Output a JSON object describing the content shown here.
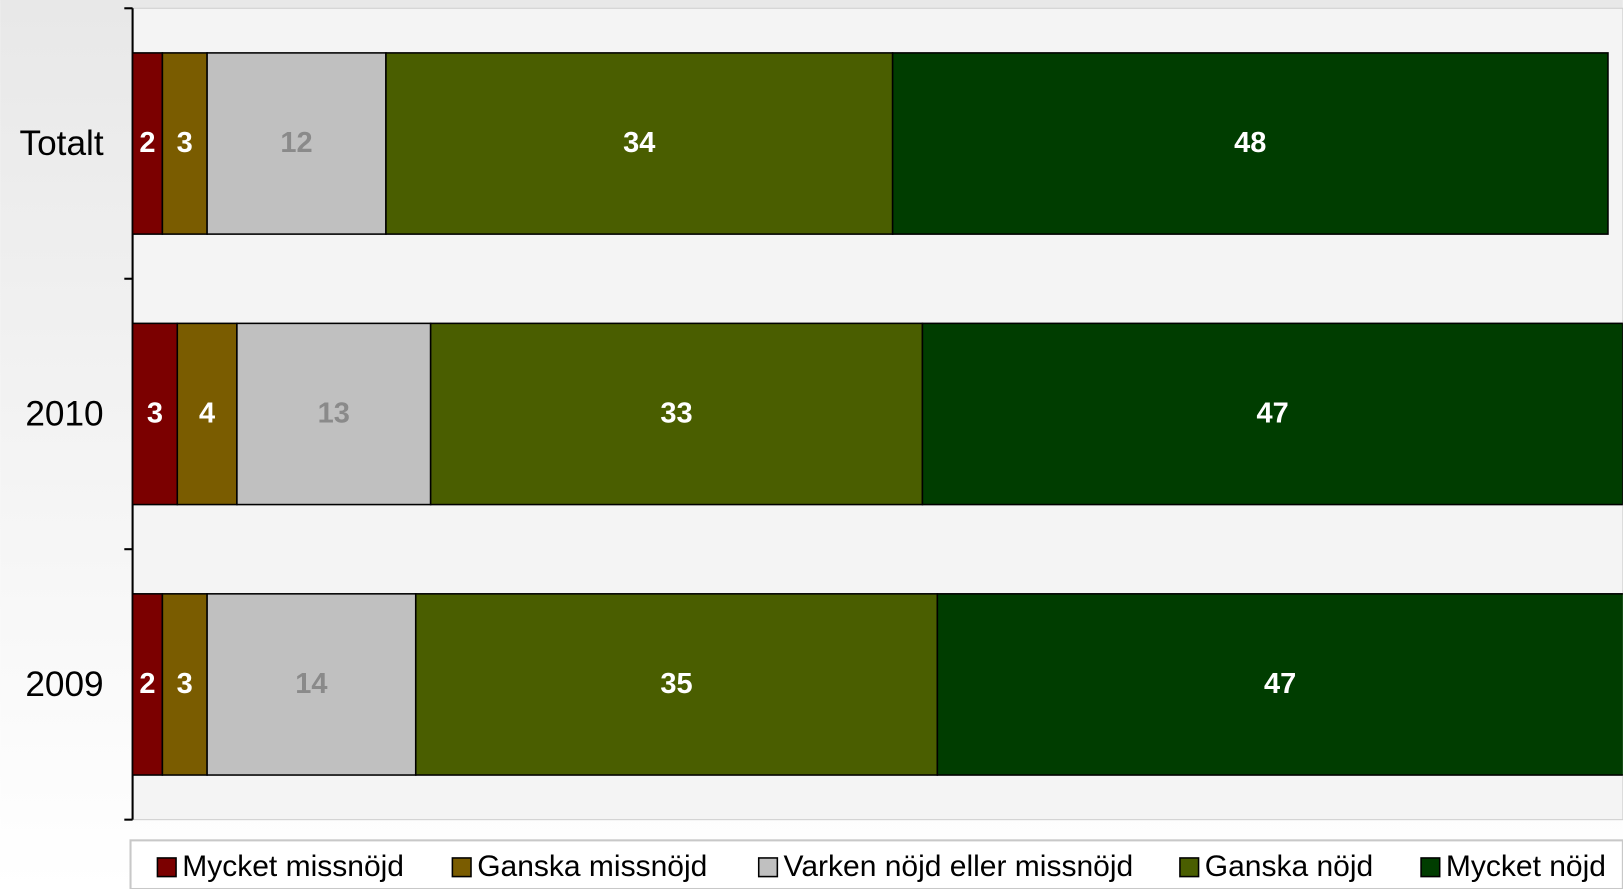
{
  "chart_data": {
    "type": "stacked_barh",
    "categories": [
      "Totalt",
      "2010",
      "2009"
    ],
    "series": [
      {
        "name": "Mycket missnöjd",
        "color": "#7b0000",
        "label_color": "#ffffff",
        "values": [
          2,
          3,
          2
        ]
      },
      {
        "name": "Ganska missnöjd",
        "color": "#7a5c00",
        "label_color": "#ffffff",
        "values": [
          3,
          4,
          3
        ]
      },
      {
        "name": "Varken nöjd eller missnöjd",
        "color": "#c0c0c0",
        "label_color": "#8a8a8a",
        "values": [
          12,
          13,
          14
        ]
      },
      {
        "name": "Ganska nöjd",
        "color": "#4a5e00",
        "label_color": "#ffffff",
        "values": [
          34,
          33,
          35
        ]
      },
      {
        "name": "Mycket nöjd",
        "color": "#003d00",
        "label_color": "#ffffff",
        "values": [
          48,
          47,
          47
        ]
      }
    ],
    "xlim": [
      0,
      100
    ],
    "legend": "bottom"
  }
}
